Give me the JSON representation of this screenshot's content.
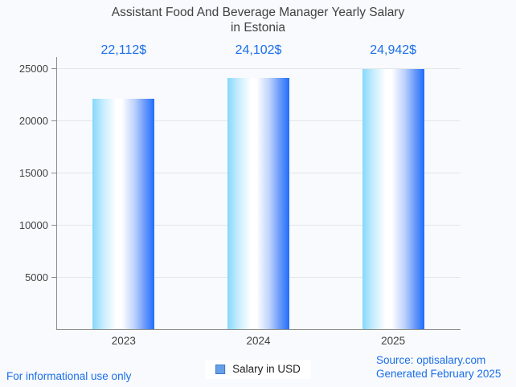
{
  "header": {
    "title_line1": "Assistant Food And Beverage Manager Yearly Salary",
    "title_line2": "in Estonia"
  },
  "chart_data": {
    "type": "bar",
    "title": "Assistant Food And Beverage Manager Yearly Salary in Estonia",
    "categories": [
      "2023",
      "2024",
      "2025"
    ],
    "values": [
      22112,
      24102,
      24942
    ],
    "value_labels": [
      "22,112$",
      "24,102$",
      "24,942$"
    ],
    "series_name": "Salary in USD",
    "xlabel": "",
    "ylabel": "",
    "ylim": [
      0,
      25000
    ],
    "yticks": [
      5000,
      10000,
      15000,
      20000,
      25000
    ],
    "grid": true,
    "legend_position": "bottom",
    "colors": {
      "value_label": "#1A6FE8",
      "bar_gradient_stops": [
        "#85D8FB",
        "#C2EBFD",
        "#FFFFFF",
        "#FFFFFF",
        "#BDD2FC",
        "#6E9CFA",
        "#1E6EFA"
      ],
      "bar_gradient_positions": [
        0,
        16,
        38,
        47,
        68,
        84,
        100
      ],
      "legend_swatch_fill": "#68A0E8",
      "legend_swatch_border": "#4177C9",
      "gridline": "#E3E6EA",
      "axis": "#8C8C8C",
      "tick_text": "#424242"
    }
  },
  "legend": {
    "label": "Salary in USD"
  },
  "footer": {
    "disclaimer": "For informational use only",
    "source_line1": "Source: optisalary.com",
    "source_line2": "Generated February 2025"
  }
}
